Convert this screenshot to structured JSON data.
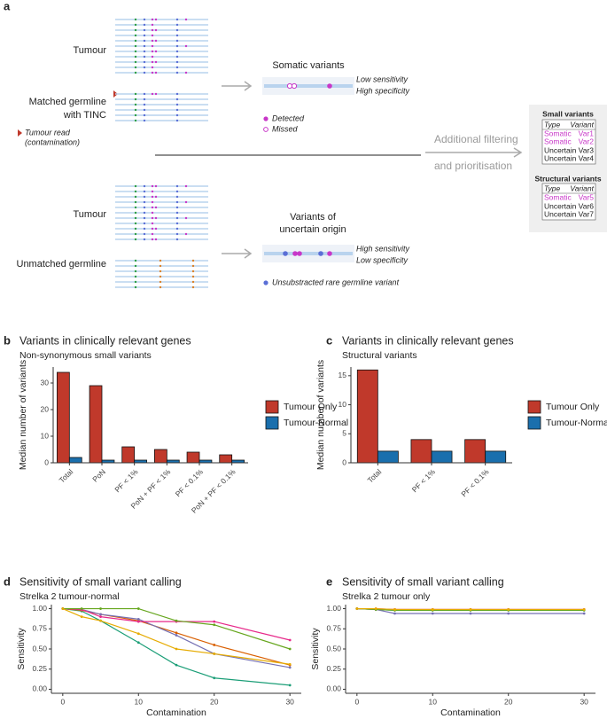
{
  "panel_a": {
    "label": "a",
    "tumour_top": "Tumour",
    "matched_germline": [
      "Matched germline",
      "with TINC"
    ],
    "contamination_note": [
      "Tumour read",
      "(contamination)"
    ],
    "somatic_title": "Somatic variants",
    "somatic_notes": [
      "Low sensitivity",
      "High specificity"
    ],
    "legend_detected": "Detected",
    "legend_missed": "Missed",
    "filtering": [
      "Additional filtering",
      "and prioritisation"
    ],
    "small_table": {
      "title": "Small variants",
      "header": [
        "Type",
        "Variant"
      ],
      "rows": [
        [
          "Somatic",
          "Var1"
        ],
        [
          "Somatic",
          "Var2"
        ],
        [
          "Uncertain",
          "Var3"
        ],
        [
          "Uncertain",
          "Var4"
        ]
      ]
    },
    "structural_table": {
      "title": "Structural variants",
      "header": [
        "Type",
        "Variant"
      ],
      "rows": [
        [
          "Somatic",
          "Var5"
        ],
        [
          "Uncertain",
          "Var6"
        ],
        [
          "Uncertain",
          "Var7"
        ]
      ]
    },
    "tumour_bottom": "Tumour",
    "unmatched_germline": "Unmatched germline",
    "uncertain_title": [
      "Variants of",
      "uncertain origin"
    ],
    "uncertain_notes": [
      "High sensitivity",
      "Low specificity"
    ],
    "legend_germline": "Unsubstracted rare germline variant"
  },
  "chart_data": [
    {
      "type": "bar",
      "panel_label": "b",
      "title": "Variants in clinically relevant genes",
      "subtitle": "Non-synonymous small variants",
      "y_label": "Median number of variants",
      "categories": [
        "Total",
        "PoN",
        "PF < 1%",
        "PoN + PF < 1%",
        "PF < 0.1%",
        "PoN + PF < 0.1%"
      ],
      "series": [
        {
          "name": "Tumour Only",
          "color": "#c0392b",
          "values": [
            34,
            29,
            6,
            5,
            4,
            3
          ]
        },
        {
          "name": "Tumour-Normal",
          "color": "#1a6fad",
          "values": [
            2,
            1,
            1,
            1,
            1,
            1
          ]
        }
      ],
      "ylim": [
        0,
        36
      ],
      "yticks": [
        0,
        10,
        20,
        30
      ]
    },
    {
      "type": "bar",
      "panel_label": "c",
      "title": "Variants in clinically relevant genes",
      "subtitle": "Structural variants",
      "y_label": "Median number of variants",
      "categories": [
        "Total",
        "PF < 1%",
        "PF < 0.1%"
      ],
      "series": [
        {
          "name": "Tumour Only",
          "color": "#c0392b",
          "values": [
            16,
            4,
            4
          ]
        },
        {
          "name": "Tumour-Normal",
          "color": "#1a6fad",
          "values": [
            2,
            2,
            2
          ]
        }
      ],
      "ylim": [
        0,
        16.5
      ],
      "yticks": [
        0,
        5,
        10,
        15
      ]
    },
    {
      "type": "line",
      "panel_label": "d",
      "title": "Sensitivity of small variant calling",
      "subtitle": "Strelka 2 tumour-normal",
      "x_label": "Contamination",
      "y_label": "Sensitivity",
      "x": [
        0,
        2.5,
        5,
        10,
        15,
        20,
        30
      ],
      "series": [
        {
          "color": "#1b9e77",
          "values": [
            1,
            0.97,
            0.85,
            0.58,
            0.3,
            0.14,
            0.05
          ]
        },
        {
          "color": "#d95f02",
          "values": [
            1,
            0.98,
            0.93,
            0.85,
            0.7,
            0.55,
            0.3
          ]
        },
        {
          "color": "#7570b3",
          "values": [
            1,
            0.99,
            0.93,
            0.87,
            0.67,
            0.44,
            0.27
          ]
        },
        {
          "color": "#e7298a",
          "values": [
            1,
            0.99,
            0.9,
            0.84,
            0.84,
            0.84,
            0.61
          ]
        },
        {
          "color": "#66a61e",
          "values": [
            1,
            1,
            1,
            1,
            0.85,
            0.8,
            0.5
          ]
        },
        {
          "color": "#e6ab02",
          "values": [
            1,
            0.9,
            0.85,
            0.69,
            0.5,
            0.44,
            0.31
          ]
        }
      ],
      "xlim": [
        -1.5,
        31.5
      ],
      "ylim": [
        -0.05,
        1.05
      ],
      "xticks": [
        0,
        10,
        20,
        30
      ],
      "yticks": [
        {
          "value": 0,
          "label": "0.00"
        },
        {
          "value": 0.25,
          "label": "0.25"
        },
        {
          "value": 0.5,
          "label": "0.50"
        },
        {
          "value": 0.75,
          "label": "0.75"
        },
        {
          "value": 1,
          "label": "1.00"
        }
      ]
    },
    {
      "type": "line",
      "panel_label": "e",
      "title": "Sensitivity of small variant calling",
      "subtitle": "Strelka 2 tumour only",
      "x_label": "Contamination",
      "y_label": "Sensitivity",
      "x": [
        0,
        2.5,
        5,
        10,
        15,
        20,
        30
      ],
      "series": [
        {
          "color": "#1b9e77",
          "values": [
            1,
            0.99,
            0.98,
            0.98,
            0.98,
            0.98,
            0.98
          ]
        },
        {
          "color": "#d95f02",
          "values": [
            1,
            0.99,
            0.99,
            0.99,
            0.99,
            0.99,
            0.99
          ]
        },
        {
          "color": "#7570b3",
          "values": [
            1,
            0.99,
            0.94,
            0.94,
            0.94,
            0.94,
            0.94
          ]
        },
        {
          "color": "#e7298a",
          "values": [
            1,
            1,
            0.99,
            0.99,
            0.99,
            0.99,
            0.99
          ]
        },
        {
          "color": "#66a61e",
          "values": [
            1,
            0.99,
            0.98,
            0.98,
            0.98,
            0.98,
            0.98
          ]
        },
        {
          "color": "#e6ab02",
          "values": [
            1,
            1,
            0.99,
            0.99,
            0.99,
            0.99,
            0.99
          ]
        }
      ],
      "xlim": [
        -1.5,
        31.5
      ],
      "ylim": [
        -0.05,
        1.05
      ],
      "xticks": [
        0,
        10,
        20,
        30
      ],
      "yticks": [
        {
          "value": 0,
          "label": "0.00"
        },
        {
          "value": 0.25,
          "label": "0.25"
        },
        {
          "value": 0.5,
          "label": "0.50"
        },
        {
          "value": 0.75,
          "label": "0.75"
        },
        {
          "value": 1,
          "label": "1.00"
        }
      ]
    }
  ]
}
